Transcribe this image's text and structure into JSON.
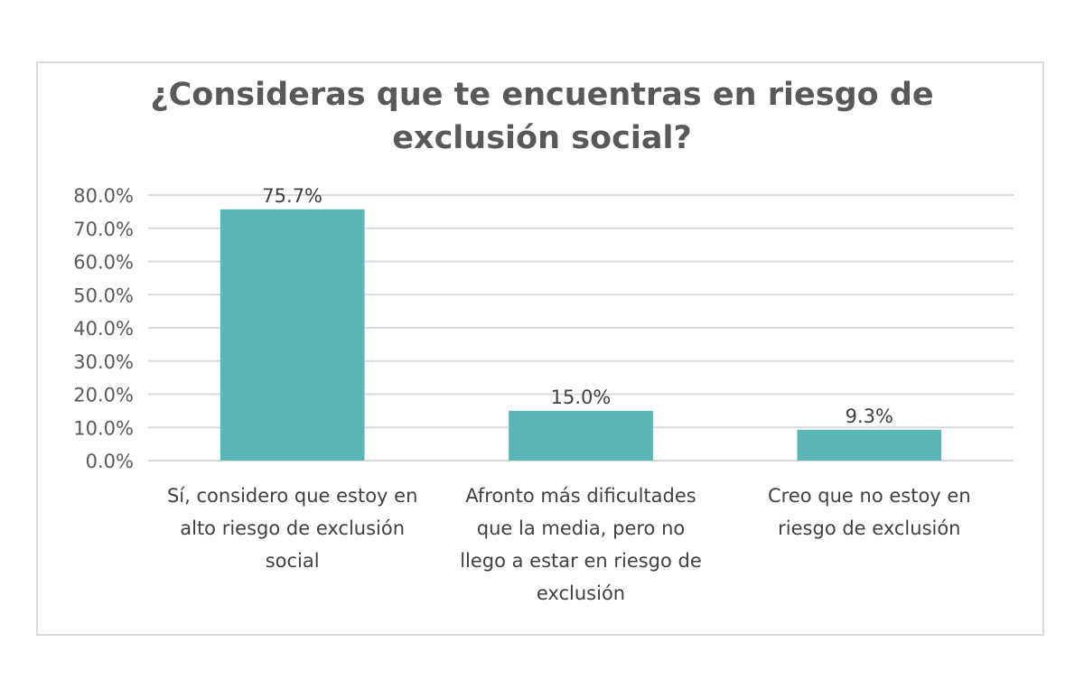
{
  "chart_data": {
    "type": "bar",
    "title": [
      "¿Consideras que te encuentras en riesgo de",
      "exclusión social?"
    ],
    "categories": [
      [
        "Sí, considero que estoy en",
        "alto riesgo de exclusión",
        "social"
      ],
      [
        "Afronto más dificultades",
        "que la media, pero no",
        "llego a estar en riesgo de",
        "exclusión"
      ],
      [
        "Creo que no estoy en",
        "riesgo de exclusión"
      ]
    ],
    "values": [
      75.7,
      15.0,
      9.3
    ],
    "data_labels": [
      "75.7%",
      "15.0%",
      "9.3%"
    ],
    "yticks": [
      "0.0%",
      "10.0%",
      "20.0%",
      "30.0%",
      "40.0%",
      "50.0%",
      "60.0%",
      "70.0%",
      "80.0%"
    ],
    "ylim": [
      0,
      80
    ],
    "grid": true,
    "bar_color": "#5BB6B6",
    "xlabel": "",
    "ylabel": ""
  }
}
